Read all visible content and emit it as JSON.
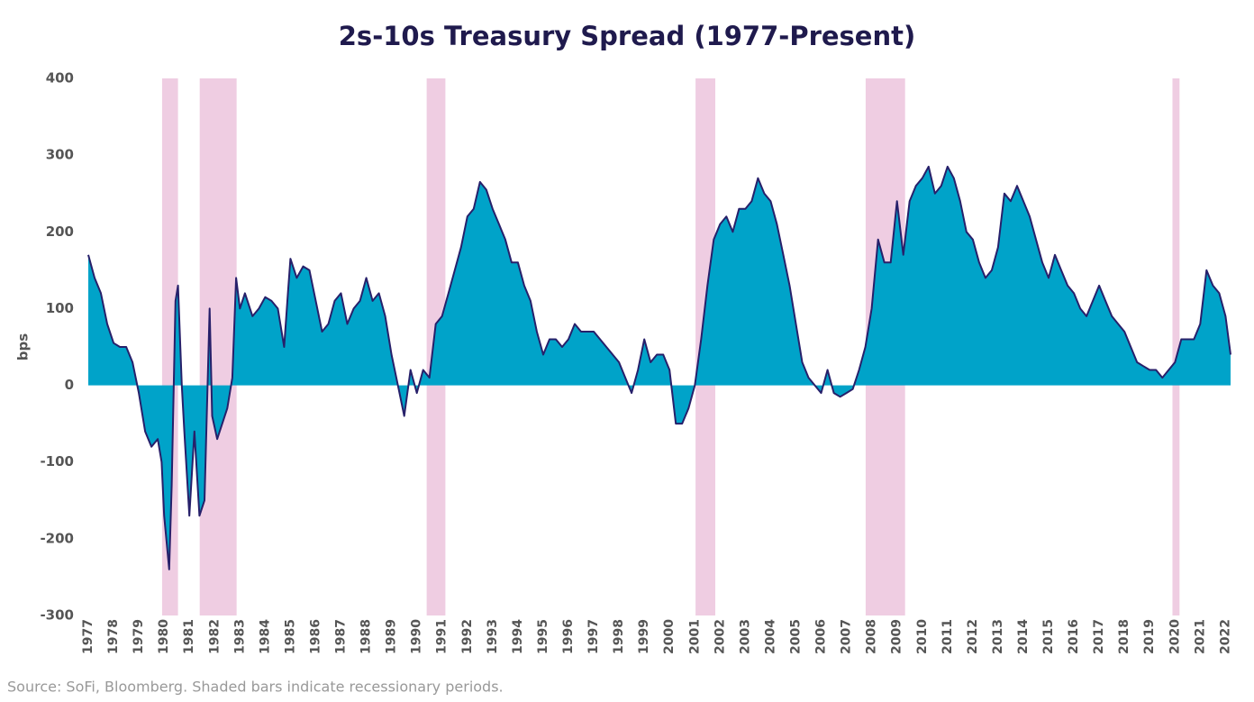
{
  "chart_data": {
    "type": "area",
    "title": "2s-10s Treasury Spread (1977-Present)",
    "y_label": "bps",
    "note": "Source: SoFi, Bloomberg. Shaded bars indicate recessionary periods.",
    "fill_color": "#00a3c9",
    "line_color": "#27206a",
    "recession_color": "#efcde2",
    "x": [
      1977,
      1977.25,
      1977.5,
      1977.75,
      1978,
      1978.25,
      1978.5,
      1978.75,
      1979,
      1979.25,
      1979.5,
      1979.75,
      1979.9,
      1980,
      1980.2,
      1980.3,
      1980.45,
      1980.55,
      1980.7,
      1980.8,
      1981,
      1981.2,
      1981.4,
      1981.6,
      1981.8,
      1981.9,
      1982.1,
      1982.5,
      1982.7,
      1982.85,
      1983,
      1983.2,
      1983.5,
      1983.75,
      1984,
      1984.25,
      1984.5,
      1984.75,
      1984.9,
      1985,
      1985.25,
      1985.5,
      1985.75,
      1986,
      1986.25,
      1986.5,
      1986.75,
      1987,
      1987.25,
      1987.5,
      1987.75,
      1988,
      1988.25,
      1988.5,
      1988.75,
      1989,
      1989.25,
      1989.5,
      1989.75,
      1990,
      1990.25,
      1990.5,
      1990.75,
      1991,
      1991.25,
      1991.5,
      1991.75,
      1992,
      1992.25,
      1992.5,
      1992.75,
      1993,
      1993.25,
      1993.5,
      1993.75,
      1994,
      1994.25,
      1994.5,
      1994.75,
      1995,
      1995.25,
      1995.5,
      1995.75,
      1996,
      1996.25,
      1996.5,
      1996.75,
      1997,
      1997.25,
      1997.5,
      1997.75,
      1998,
      1998.25,
      1998.5,
      1998.75,
      1999,
      1999.25,
      1999.5,
      1999.75,
      2000,
      2000.25,
      2000.5,
      2000.75,
      2001,
      2001.25,
      2001.5,
      2001.75,
      2002,
      2002.25,
      2002.5,
      2002.75,
      2003,
      2003.25,
      2003.5,
      2003.75,
      2004,
      2004.25,
      2004.5,
      2004.75,
      2005,
      2005.25,
      2005.5,
      2005.75,
      2006,
      2006.25,
      2006.5,
      2006.75,
      2007,
      2007.25,
      2007.5,
      2007.75,
      2008,
      2008.25,
      2008.5,
      2008.75,
      2009,
      2009.25,
      2009.5,
      2009.75,
      2010,
      2010.25,
      2010.5,
      2010.75,
      2011,
      2011.25,
      2011.5,
      2011.75,
      2012,
      2012.25,
      2012.5,
      2012.75,
      2013,
      2013.25,
      2013.5,
      2013.75,
      2014,
      2014.25,
      2014.5,
      2014.75,
      2015,
      2015.25,
      2015.5,
      2015.75,
      2016,
      2016.25,
      2016.5,
      2016.75,
      2017,
      2017.25,
      2017.5,
      2017.75,
      2018,
      2018.25,
      2018.5,
      2018.75,
      2019,
      2019.25,
      2019.5,
      2019.75,
      2020,
      2020.25,
      2020.5,
      2020.75,
      2021,
      2021.25,
      2021.5,
      2021.75,
      2022,
      2022.2
    ],
    "values": [
      170,
      140,
      120,
      80,
      55,
      50,
      50,
      30,
      -10,
      -60,
      -80,
      -70,
      -100,
      -170,
      -240,
      -130,
      110,
      130,
      0,
      -60,
      -170,
      -60,
      -170,
      -150,
      100,
      -40,
      -70,
      -30,
      10,
      140,
      100,
      120,
      90,
      100,
      115,
      110,
      100,
      50,
      120,
      165,
      140,
      155,
      150,
      110,
      70,
      80,
      110,
      120,
      80,
      100,
      110,
      140,
      110,
      120,
      90,
      40,
      0,
      -40,
      20,
      -10,
      20,
      10,
      80,
      90,
      120,
      150,
      180,
      220,
      230,
      265,
      255,
      230,
      210,
      190,
      160,
      160,
      130,
      110,
      70,
      40,
      60,
      60,
      50,
      60,
      80,
      70,
      70,
      70,
      60,
      50,
      40,
      30,
      10,
      -10,
      20,
      60,
      30,
      40,
      40,
      20,
      -50,
      -50,
      -30,
      0,
      60,
      130,
      190,
      210,
      220,
      200,
      230,
      230,
      240,
      270,
      250,
      240,
      210,
      170,
      130,
      80,
      30,
      10,
      0,
      -10,
      20,
      -10,
      -15,
      -10,
      -5,
      20,
      50,
      100,
      190,
      160,
      160,
      240,
      170,
      240,
      260,
      270,
      285,
      250,
      260,
      285,
      270,
      240,
      200,
      190,
      160,
      140,
      150,
      180,
      250,
      240,
      260,
      240,
      220,
      190,
      160,
      140,
      170,
      150,
      130,
      120,
      100,
      90,
      110,
      130,
      110,
      90,
      80,
      70,
      50,
      30,
      25,
      20,
      20,
      10,
      20,
      30,
      60,
      60,
      60,
      80,
      150,
      130,
      120,
      90,
      40
    ],
    "recessions": [
      [
        1979.92,
        1980.55
      ],
      [
        1981.41,
        1982.87
      ],
      [
        1990.39,
        1991.13
      ],
      [
        2001.03,
        2001.81
      ],
      [
        2007.76,
        2009.32
      ],
      [
        2019.9,
        2020.18
      ]
    ],
    "xlim": [
      1977,
      2022.2
    ],
    "xticks": [
      1977,
      1978,
      1979,
      1980,
      1981,
      1982,
      1983,
      1984,
      1985,
      1986,
      1987,
      1988,
      1989,
      1990,
      1991,
      1992,
      1993,
      1994,
      1995,
      1996,
      1997,
      1998,
      1999,
      2000,
      2001,
      2002,
      2003,
      2004,
      2005,
      2006,
      2007,
      2008,
      2009,
      2010,
      2011,
      2012,
      2013,
      2014,
      2015,
      2016,
      2017,
      2018,
      2019,
      2020,
      2021,
      2022
    ],
    "ylim": [
      -300,
      400
    ],
    "yticks": [
      -300,
      -200,
      -100,
      0,
      100,
      200,
      300,
      400
    ]
  }
}
